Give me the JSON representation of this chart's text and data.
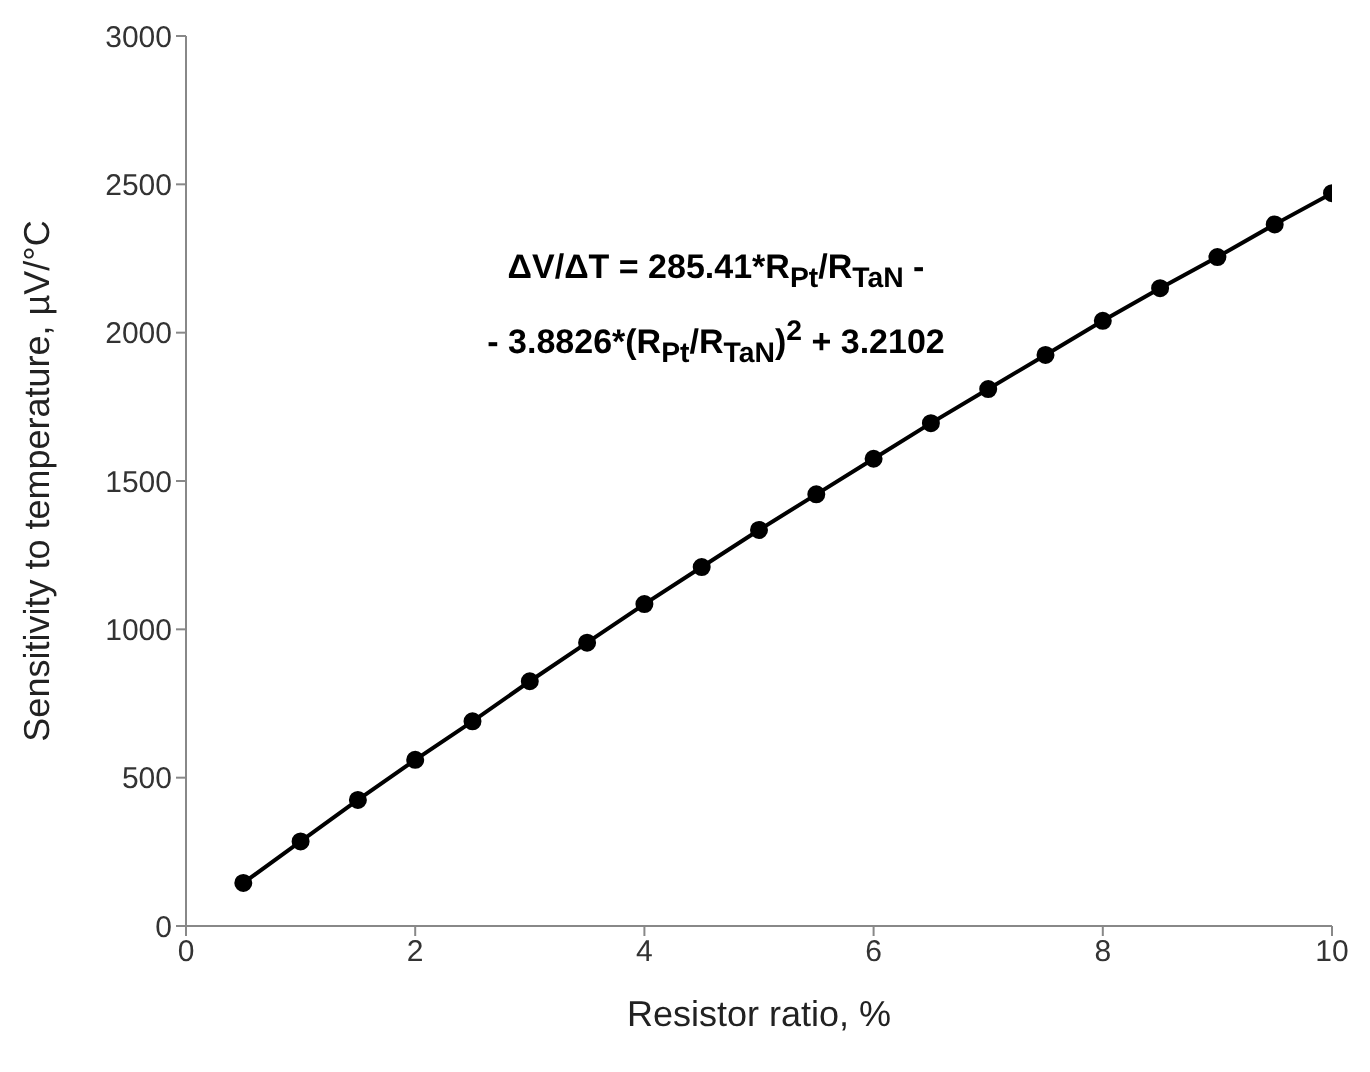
{
  "chart_data": {
    "type": "line",
    "xlabel": "Resistor ratio, %",
    "ylabel": "Sensitivity to temperature, µV/°C",
    "x": [
      0.5,
      1,
      1.5,
      2,
      2.5,
      3,
      3.5,
      4,
      4.5,
      5,
      5.5,
      6,
      6.5,
      7,
      7.5,
      8,
      8.5,
      9,
      9.5,
      10
    ],
    "series": [
      {
        "color": "#000000",
        "values": [
          145,
          285,
          425,
          560,
          690,
          825,
          955,
          1085,
          1210,
          1335,
          1455,
          1575,
          1695,
          1810,
          1925,
          2040,
          2150,
          2255,
          2365,
          2470
        ]
      }
    ],
    "xlim": [
      0,
      10
    ],
    "xticks": [
      0,
      2,
      4,
      6,
      8,
      10
    ],
    "ylim": [
      0,
      3000
    ],
    "yticks": [
      0,
      500,
      1000,
      1500,
      2000,
      2500,
      3000
    ],
    "marker": "circle",
    "line_style": "solid",
    "grid": false,
    "annotations": [
      "ΔV/ΔT = 285.41*R$_{Pt}$/R$_{TaN}$ -",
      "- 3.8826*(R$_{Pt}$/R$_{TaN}$)$^{2}$ + 3.2102"
    ]
  }
}
